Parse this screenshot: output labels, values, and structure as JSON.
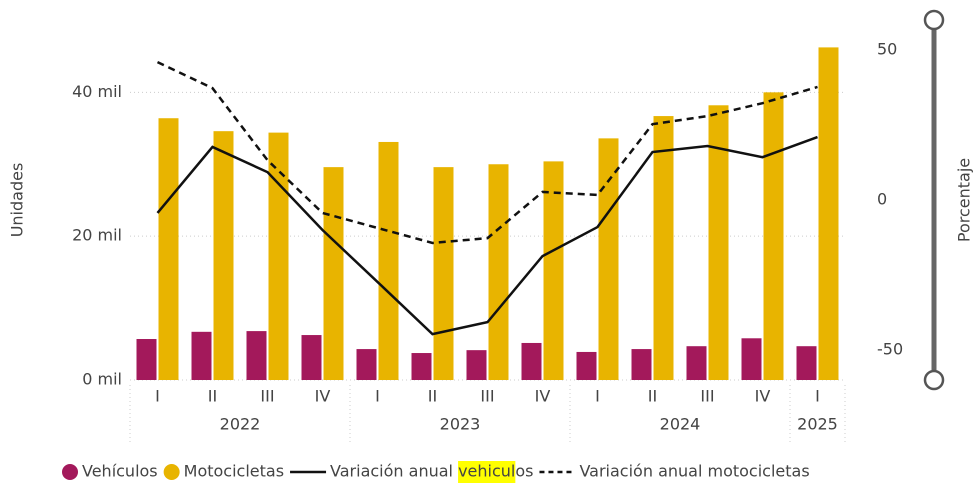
{
  "chart_data": {
    "type": "bar",
    "categories": [
      "I",
      "II",
      "III",
      "IV",
      "I",
      "II",
      "III",
      "IV",
      "I",
      "II",
      "III",
      "IV",
      "I"
    ],
    "groups": [
      {
        "label": "2022",
        "count": 4
      },
      {
        "label": "2023",
        "count": 4
      },
      {
        "label": "2024",
        "count": 4
      },
      {
        "label": "2025",
        "count": 1
      }
    ],
    "series": [
      {
        "name": "Vehículos",
        "type": "bar",
        "color": "#a3195b",
        "values": [
          5700,
          6700,
          6800,
          6250,
          4300,
          3750,
          4150,
          5150,
          3900,
          4300,
          4700,
          5800,
          4700
        ]
      },
      {
        "name": "Motocicletas",
        "type": "bar",
        "color": "#e8b400",
        "values": [
          36400,
          34600,
          34400,
          29600,
          33100,
          29600,
          30000,
          30400,
          33600,
          36700,
          38200,
          40000,
          46250
        ]
      },
      {
        "name": "Variación anual vehiculos",
        "type": "line",
        "axis": "y2",
        "dashed": false,
        "color": "#111111",
        "values": [
          -4.3,
          17.7,
          9.3,
          -10,
          -27.3,
          -44.7,
          -40.7,
          -18.7,
          -9,
          16,
          18,
          14.3,
          21
        ]
      },
      {
        "name": "Variación anual motocicletas",
        "type": "line",
        "axis": "y2",
        "dashed": true,
        "color": "#111111",
        "values": [
          46,
          37.3,
          13.3,
          -4.3,
          -9.3,
          -14.3,
          -12.7,
          2.7,
          1.7,
          25.3,
          28,
          32.3,
          37.7
        ]
      }
    ],
    "ylabel": "Unidades",
    "y2label": "Porcentaje",
    "ylim": [
      0,
      47000
    ],
    "yticks": [
      {
        "value": 0,
        "label": "0 mil"
      },
      {
        "value": 20000,
        "label": "20 mil"
      },
      {
        "value": 40000,
        "label": "40 mil"
      }
    ],
    "y2lim": [
      -60,
      52.7
    ],
    "y2ticks": [
      -50,
      0,
      50
    ],
    "grid": true,
    "legend": "bottom"
  }
}
